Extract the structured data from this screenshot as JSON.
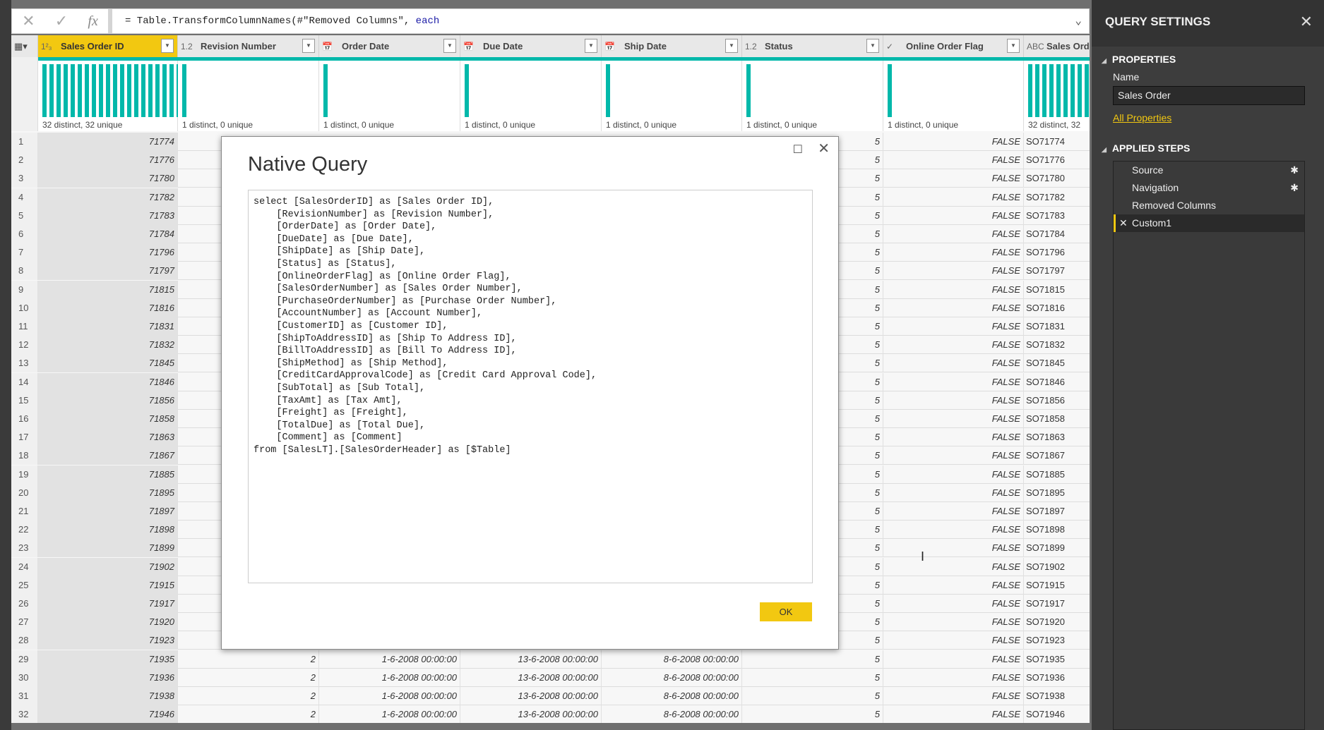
{
  "formula_bar": {
    "cancel_icon": "✕",
    "confirm_icon": "✓",
    "fx_label": "fx",
    "formula_text": "= Table.TransformColumnNames(#\"Removed Columns\", ",
    "formula_keyword": "each"
  },
  "columns": [
    {
      "type_icon": "1²₃",
      "name": "Sales Order ID",
      "profile": "32 distinct, 32 unique",
      "distinct": 32,
      "selected": true
    },
    {
      "type_icon": "1.2",
      "name": "Revision Number",
      "profile": "1 distinct, 0 unique",
      "distinct": 1
    },
    {
      "type_icon": "📅",
      "name": "Order Date",
      "profile": "1 distinct, 0 unique",
      "distinct": 1
    },
    {
      "type_icon": "📅",
      "name": "Due Date",
      "profile": "1 distinct, 0 unique",
      "distinct": 1
    },
    {
      "type_icon": "📅",
      "name": "Ship Date",
      "profile": "1 distinct, 0 unique",
      "distinct": 1
    },
    {
      "type_icon": "1.2",
      "name": "Status",
      "profile": "1 distinct, 0 unique",
      "distinct": 1
    },
    {
      "type_icon": "✓",
      "name": "Online Order Flag",
      "profile": "1 distinct, 0 unique",
      "distinct": 1
    },
    {
      "type_icon": "ABC",
      "name": "Sales Ord",
      "profile": "32 distinct, 32",
      "distinct": 32
    }
  ],
  "rows": [
    {
      "n": "1",
      "id": "71774",
      "status": "5",
      "flag": "FALSE",
      "so": "SO71774"
    },
    {
      "n": "2",
      "id": "71776",
      "status": "5",
      "flag": "FALSE",
      "so": "SO71776"
    },
    {
      "n": "3",
      "id": "71780",
      "status": "5",
      "flag": "FALSE",
      "so": "SO71780"
    },
    {
      "n": "4",
      "id": "71782",
      "status": "5",
      "flag": "FALSE",
      "so": "SO71782"
    },
    {
      "n": "5",
      "id": "71783",
      "status": "5",
      "flag": "FALSE",
      "so": "SO71783"
    },
    {
      "n": "6",
      "id": "71784",
      "status": "5",
      "flag": "FALSE",
      "so": "SO71784"
    },
    {
      "n": "7",
      "id": "71796",
      "status": "5",
      "flag": "FALSE",
      "so": "SO71796"
    },
    {
      "n": "8",
      "id": "71797",
      "status": "5",
      "flag": "FALSE",
      "so": "SO71797"
    },
    {
      "n": "9",
      "id": "71815",
      "status": "5",
      "flag": "FALSE",
      "so": "SO71815"
    },
    {
      "n": "10",
      "id": "71816",
      "status": "5",
      "flag": "FALSE",
      "so": "SO71816"
    },
    {
      "n": "11",
      "id": "71831",
      "status": "5",
      "flag": "FALSE",
      "so": "SO71831"
    },
    {
      "n": "12",
      "id": "71832",
      "status": "5",
      "flag": "FALSE",
      "so": "SO71832"
    },
    {
      "n": "13",
      "id": "71845",
      "status": "5",
      "flag": "FALSE",
      "so": "SO71845"
    },
    {
      "n": "14",
      "id": "71846",
      "status": "5",
      "flag": "FALSE",
      "so": "SO71846"
    },
    {
      "n": "15",
      "id": "71856",
      "status": "5",
      "flag": "FALSE",
      "so": "SO71856"
    },
    {
      "n": "16",
      "id": "71858",
      "status": "5",
      "flag": "FALSE",
      "so": "SO71858"
    },
    {
      "n": "17",
      "id": "71863",
      "status": "5",
      "flag": "FALSE",
      "so": "SO71863"
    },
    {
      "n": "18",
      "id": "71867",
      "status": "5",
      "flag": "FALSE",
      "so": "SO71867"
    },
    {
      "n": "19",
      "id": "71885",
      "status": "5",
      "flag": "FALSE",
      "so": "SO71885"
    },
    {
      "n": "20",
      "id": "71895",
      "status": "5",
      "flag": "FALSE",
      "so": "SO71895"
    },
    {
      "n": "21",
      "id": "71897",
      "status": "5",
      "flag": "FALSE",
      "so": "SO71897"
    },
    {
      "n": "22",
      "id": "71898",
      "status": "5",
      "flag": "FALSE",
      "so": "SO71898"
    },
    {
      "n": "23",
      "id": "71899",
      "status": "5",
      "flag": "FALSE",
      "so": "SO71899"
    },
    {
      "n": "24",
      "id": "71902",
      "status": "5",
      "flag": "FALSE",
      "so": "SO71902"
    },
    {
      "n": "25",
      "id": "71915",
      "status": "5",
      "flag": "FALSE",
      "so": "SO71915"
    },
    {
      "n": "26",
      "id": "71917",
      "status": "5",
      "flag": "FALSE",
      "so": "SO71917"
    },
    {
      "n": "27",
      "id": "71920",
      "status": "5",
      "flag": "FALSE",
      "so": "SO71920"
    },
    {
      "n": "28",
      "id": "71923",
      "status": "5",
      "flag": "FALSE",
      "so": "SO71923"
    },
    {
      "n": "29",
      "id": "71935",
      "rev": "2",
      "order": "1-6-2008 00:00:00",
      "due": "13-6-2008 00:00:00",
      "ship": "8-6-2008 00:00:00",
      "status": "5",
      "flag": "FALSE",
      "so": "SO71935"
    },
    {
      "n": "30",
      "id": "71936",
      "rev": "2",
      "order": "1-6-2008 00:00:00",
      "due": "13-6-2008 00:00:00",
      "ship": "8-6-2008 00:00:00",
      "status": "5",
      "flag": "FALSE",
      "so": "SO71936"
    },
    {
      "n": "31",
      "id": "71938",
      "rev": "2",
      "order": "1-6-2008 00:00:00",
      "due": "13-6-2008 00:00:00",
      "ship": "8-6-2008 00:00:00",
      "status": "5",
      "flag": "FALSE",
      "so": "SO71938"
    },
    {
      "n": "32",
      "id": "71946",
      "rev": "2",
      "order": "1-6-2008 00:00:00",
      "due": "13-6-2008 00:00:00",
      "ship": "8-6-2008 00:00:00",
      "status": "5",
      "flag": "FALSE",
      "so": "SO71946"
    }
  ],
  "query_settings": {
    "title": "QUERY SETTINGS",
    "properties_label": "PROPERTIES",
    "name_label": "Name",
    "name_value": "Sales Order",
    "all_properties_link": "All Properties",
    "applied_steps_label": "APPLIED STEPS",
    "steps": [
      {
        "label": "Source",
        "has_gear": true
      },
      {
        "label": "Navigation",
        "has_gear": true
      },
      {
        "label": "Removed Columns"
      },
      {
        "label": "Custom1",
        "active": true
      }
    ]
  },
  "dialog": {
    "title": "Native Query",
    "ok_label": "OK",
    "query_text": "select [SalesOrderID] as [Sales Order ID],\n    [RevisionNumber] as [Revision Number],\n    [OrderDate] as [Order Date],\n    [DueDate] as [Due Date],\n    [ShipDate] as [Ship Date],\n    [Status] as [Status],\n    [OnlineOrderFlag] as [Online Order Flag],\n    [SalesOrderNumber] as [Sales Order Number],\n    [PurchaseOrderNumber] as [Purchase Order Number],\n    [AccountNumber] as [Account Number],\n    [CustomerID] as [Customer ID],\n    [ShipToAddressID] as [Ship To Address ID],\n    [BillToAddressID] as [Bill To Address ID],\n    [ShipMethod] as [Ship Method],\n    [CreditCardApprovalCode] as [Credit Card Approval Code],\n    [SubTotal] as [Sub Total],\n    [TaxAmt] as [Tax Amt],\n    [Freight] as [Freight],\n    [TotalDue] as [Total Due],\n    [Comment] as [Comment]\nfrom [SalesLT].[SalesOrderHeader] as [$Table]"
  },
  "colors": {
    "accent": "#f2c811",
    "profile_bar": "#01b8aa",
    "panel_bg": "#3d3d3d"
  }
}
